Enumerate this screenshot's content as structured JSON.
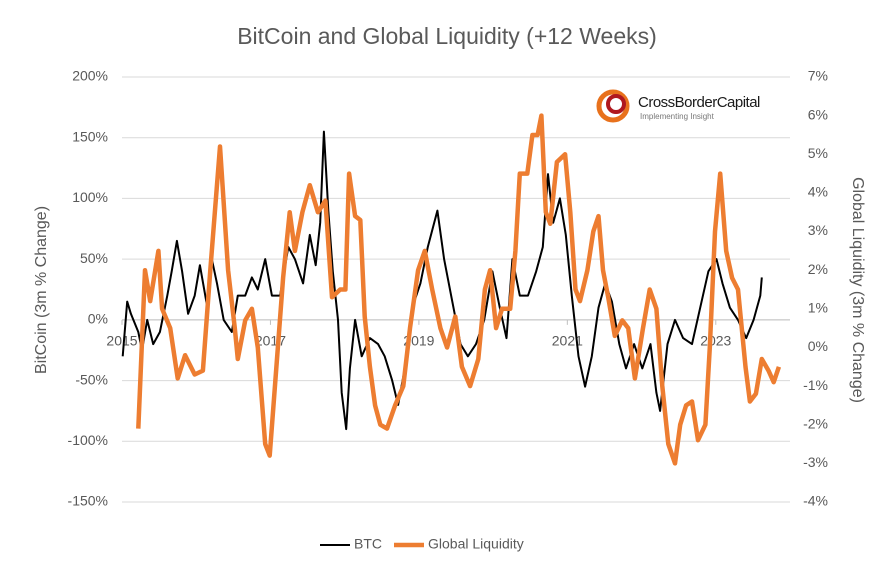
{
  "chart_data": {
    "type": "line",
    "title": "BitCoin and Global Liquidity (+12 Weeks)",
    "y_label": "BitCoin (3m % Change)",
    "y2_label": "Global Liquidity (3m % Change)",
    "logo": {
      "name": "CrossBorderCapital",
      "tagline": "Implementing Insight"
    },
    "legend": "bottom",
    "grid": true,
    "xlim": [
      2015,
      2024
    ],
    "xticks": [
      2015,
      2017,
      2019,
      2021,
      2023
    ],
    "ylim": [
      -150,
      200
    ],
    "yticks": [
      {
        "value": -150,
        "label": "-150%"
      },
      {
        "value": -100,
        "label": "-100%"
      },
      {
        "value": -50,
        "label": "-50%"
      },
      {
        "value": 0,
        "label": "0%"
      },
      {
        "value": 50,
        "label": "50%"
      },
      {
        "value": 100,
        "label": "100%"
      },
      {
        "value": 150,
        "label": "150%"
      },
      {
        "value": 200,
        "label": "200%"
      }
    ],
    "y2lim": [
      -4,
      7
    ],
    "y2ticks": [
      {
        "value": -4,
        "label": "-4%"
      },
      {
        "value": -3,
        "label": "-3%"
      },
      {
        "value": -2,
        "label": "-2%"
      },
      {
        "value": -1,
        "label": "-1%"
      },
      {
        "value": 0,
        "label": "0%"
      },
      {
        "value": 1,
        "label": "1%"
      },
      {
        "value": 2,
        "label": "2%"
      },
      {
        "value": 3,
        "label": "3%"
      },
      {
        "value": 4,
        "label": "4%"
      },
      {
        "value": 5,
        "label": "5%"
      },
      {
        "value": 6,
        "label": "6%"
      },
      {
        "value": 7,
        "label": "7%"
      }
    ],
    "series": [
      {
        "name": "BTC",
        "color": "#000000",
        "axis": "y",
        "width": 2,
        "x": [
          2015.01,
          2015.07,
          2015.12,
          2015.22,
          2015.27,
          2015.34,
          2015.42,
          2015.51,
          2015.61,
          2015.67,
          2015.74,
          2015.81,
          2015.89,
          2015.98,
          2016.05,
          2016.15,
          2016.21,
          2016.28,
          2016.37,
          2016.48,
          2016.56,
          2016.66,
          2016.75,
          2016.83,
          2016.93,
          2017.02,
          2017.13,
          2017.24,
          2017.33,
          2017.44,
          2017.53,
          2017.61,
          2017.67,
          2017.72,
          2017.78,
          2017.84,
          2017.91,
          2017.96,
          2018.02,
          2018.07,
          2018.14,
          2018.23,
          2018.34,
          2018.45,
          2018.54,
          2018.64,
          2018.72,
          2018.81,
          2018.91,
          2019.02,
          2019.12,
          2019.25,
          2019.34,
          2019.45,
          2019.56,
          2019.66,
          2019.77,
          2019.88,
          2019.99,
          2020.09,
          2020.18,
          2020.26,
          2020.36,
          2020.47,
          2020.58,
          2020.67,
          2020.74,
          2020.81,
          2020.9,
          2020.98,
          2021.06,
          2021.15,
          2021.24,
          2021.33,
          2021.42,
          2021.51,
          2021.6,
          2021.7,
          2021.79,
          2021.9,
          2022.01,
          2022.12,
          2022.2,
          2022.25,
          2022.35,
          2022.45,
          2022.56,
          2022.68,
          2022.79,
          2022.9,
          2023.01,
          2023.09,
          2023.19,
          2023.3,
          2023.41,
          2023.51,
          2023.6,
          2023.62
        ],
        "values": [
          -30,
          15,
          5,
          -10,
          -25,
          0,
          -20,
          -10,
          20,
          40,
          65,
          40,
          5,
          20,
          45,
          10,
          50,
          30,
          0,
          -10,
          20,
          20,
          35,
          25,
          50,
          20,
          20,
          60,
          50,
          30,
          70,
          45,
          80,
          155,
          90,
          40,
          0,
          -60,
          -90,
          -40,
          0,
          -30,
          -15,
          -20,
          -30,
          -50,
          -70,
          -40,
          10,
          30,
          60,
          90,
          50,
          15,
          -20,
          -30,
          -20,
          0,
          40,
          10,
          -15,
          50,
          20,
          20,
          40,
          60,
          120,
          80,
          100,
          70,
          20,
          -30,
          -55,
          -30,
          10,
          30,
          15,
          -20,
          -40,
          -20,
          -40,
          -20,
          -60,
          -75,
          -20,
          0,
          -15,
          -20,
          10,
          40,
          50,
          30,
          10,
          0,
          -15,
          0,
          20,
          35
        ]
      },
      {
        "name": "Global Liquidity",
        "color": "#ed7d31",
        "axis": "y2",
        "width": 4.5,
        "x": [
          2015.22,
          2015.31,
          2015.38,
          2015.49,
          2015.54,
          2015.65,
          2015.75,
          2015.85,
          2015.98,
          2016.09,
          2016.19,
          2016.32,
          2016.43,
          2016.52,
          2016.56,
          2016.66,
          2016.75,
          2016.83,
          2016.93,
          2016.99,
          2017.08,
          2017.17,
          2017.26,
          2017.33,
          2017.43,
          2017.53,
          2017.64,
          2017.74,
          2017.83,
          2017.94,
          2018.01,
          2018.06,
          2018.14,
          2018.21,
          2018.27,
          2018.34,
          2018.41,
          2018.48,
          2018.57,
          2018.68,
          2018.79,
          2018.88,
          2018.99,
          2019.08,
          2019.18,
          2019.29,
          2019.38,
          2019.49,
          2019.58,
          2019.69,
          2019.8,
          2019.89,
          2019.96,
          2020.04,
          2020.12,
          2020.23,
          2020.3,
          2020.36,
          2020.46,
          2020.53,
          2020.6,
          2020.65,
          2020.71,
          2020.77,
          2020.86,
          2020.97,
          2021.04,
          2021.11,
          2021.17,
          2021.27,
          2021.35,
          2021.42,
          2021.48,
          2021.55,
          2021.64,
          2021.74,
          2021.82,
          2021.91,
          2022.02,
          2022.11,
          2022.2,
          2022.28,
          2022.36,
          2022.45,
          2022.52,
          2022.6,
          2022.68,
          2022.76,
          2022.86,
          2022.92,
          2022.99,
          2023.06,
          2023.14,
          2023.22,
          2023.3,
          2023.4,
          2023.46,
          2023.54,
          2023.62,
          2023.71,
          2023.78,
          2023.85
        ],
        "values": [
          -2.1,
          2.0,
          1.2,
          2.5,
          1.0,
          0.5,
          -0.8,
          -0.2,
          -0.7,
          -0.6,
          2.0,
          5.2,
          2.0,
          0.5,
          -0.3,
          0.7,
          1.0,
          0.0,
          -2.5,
          -2.8,
          -0.5,
          1.8,
          3.5,
          2.5,
          3.5,
          4.2,
          3.5,
          3.8,
          1.3,
          1.5,
          1.5,
          4.5,
          3.4,
          3.3,
          0.8,
          -0.5,
          -1.5,
          -2.0,
          -2.1,
          -1.5,
          -1.0,
          0.5,
          2.0,
          2.5,
          1.5,
          0.5,
          0.0,
          0.8,
          -0.5,
          -1.0,
          -0.3,
          1.5,
          2.0,
          0.5,
          1.0,
          1.0,
          2.5,
          4.5,
          4.5,
          5.5,
          5.5,
          6.0,
          3.5,
          3.2,
          4.8,
          5.0,
          3.5,
          1.5,
          1.2,
          2.0,
          3.0,
          3.4,
          2.0,
          1.3,
          0.3,
          0.7,
          0.5,
          -0.8,
          0.5,
          1.5,
          1.0,
          -1.0,
          -2.5,
          -3.0,
          -2.0,
          -1.5,
          -1.4,
          -2.4,
          -2.0,
          0.0,
          3.0,
          4.5,
          2.5,
          1.8,
          1.5,
          -0.5,
          -1.4,
          -1.2,
          -0.3,
          -0.6,
          -0.9,
          -0.5
        ]
      }
    ]
  }
}
